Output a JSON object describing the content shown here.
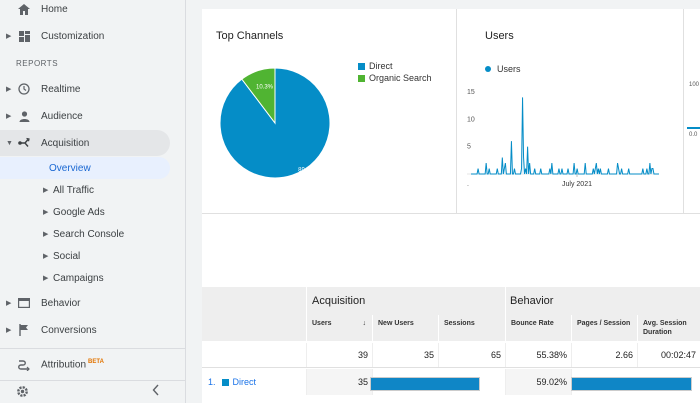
{
  "sidebar": {
    "home": "Home",
    "customization": "Customization",
    "reports_label": "REPORTS",
    "realtime": "Realtime",
    "audience": "Audience",
    "acquisition": "Acquisition",
    "overview": "Overview",
    "all_traffic": "All Traffic",
    "google_ads": "Google Ads",
    "search_console": "Search Console",
    "social": "Social",
    "campaigns": "Campaigns",
    "behavior": "Behavior",
    "conversions": "Conversions",
    "attribution": "Attribution",
    "beta": "BETA",
    "icons": [
      "home-icon",
      "grid-icon",
      "clock-icon",
      "person-icon",
      "acquisition-icon",
      "behavior-icon",
      "flag-icon",
      "attribution-icon",
      "gear-icon",
      "chevron-left-icon"
    ]
  },
  "top_channels": {
    "title": "Top Channels",
    "legend": [
      {
        "label": "Direct",
        "color": "#058dc7"
      },
      {
        "label": "Organic Search",
        "color": "#50b432"
      }
    ]
  },
  "users_panel": {
    "title": "Users",
    "legend_label": "Users",
    "series_color": "#058dc7",
    "y_ticks": [
      "15",
      "10",
      "5"
    ],
    "x_label": "July 2021",
    "x_left_dot": ".",
    "partial_tick_top": "100",
    "partial_tick_mid": "0.0"
  },
  "chart_data": [
    {
      "type": "pie",
      "labels": [
        "Direct",
        "Organic Search"
      ],
      "values": [
        89.7,
        10.3
      ],
      "data_labels": [
        "89.7%",
        "10.3%"
      ],
      "colors": [
        "#058dc7",
        "#50b432"
      ],
      "title": "Top Channels"
    },
    {
      "type": "line",
      "title": "Users",
      "series": [
        {
          "name": "Users",
          "values": [
            0,
            0,
            0,
            0,
            0,
            0,
            0,
            1,
            0,
            0,
            0,
            0,
            0,
            0,
            0,
            2,
            0,
            0,
            1,
            0,
            0,
            0,
            0,
            0,
            0,
            0,
            1,
            0,
            0,
            0,
            0,
            3,
            0,
            1,
            2,
            0,
            0,
            0,
            0,
            0,
            6,
            0,
            0,
            1,
            0,
            0,
            0,
            0,
            0,
            0,
            1,
            14,
            3,
            0,
            1,
            0,
            5,
            0,
            2,
            0,
            0,
            0,
            0,
            1,
            0,
            0,
            0,
            0,
            0,
            1,
            0,
            0,
            0,
            0,
            0,
            0,
            0,
            0,
            1,
            0,
            2,
            0,
            0,
            0,
            0,
            0,
            0,
            1,
            0,
            0,
            1,
            0,
            0,
            0,
            0,
            0,
            1,
            0,
            0,
            0,
            0,
            0,
            2,
            0,
            0,
            1,
            0,
            0,
            0,
            0,
            0,
            0,
            0,
            2,
            0,
            0,
            0,
            0,
            0,
            0,
            0,
            1,
            0,
            1,
            2,
            0,
            1,
            0,
            1,
            0,
            0,
            0,
            0,
            0,
            0,
            0,
            1,
            0,
            0,
            0,
            0,
            0,
            0,
            0,
            0,
            2,
            1,
            0,
            0,
            1,
            0,
            0,
            0,
            0,
            0,
            0,
            1,
            0,
            0,
            0,
            0,
            0,
            0,
            0,
            0,
            0,
            0,
            0,
            0,
            0,
            1,
            0,
            0,
            0,
            1,
            0,
            0,
            2,
            0,
            1,
            1,
            0,
            0,
            0,
            0,
            0,
            0
          ]
        }
      ],
      "yticks": [
        5,
        10,
        15
      ],
      "ylim": [
        0,
        17
      ],
      "xlabel_tick": "July 2021"
    }
  ],
  "table": {
    "group_acquisition": "Acquisition",
    "group_behavior": "Behavior",
    "headers": [
      {
        "label": "Users",
        "sort": "↓"
      },
      {
        "label": "New Users"
      },
      {
        "label": "Sessions"
      },
      {
        "label": "Bounce Rate"
      },
      {
        "label": "Pages / Session"
      },
      {
        "label": "Avg. Session Duration"
      }
    ],
    "totals": [
      "39",
      "35",
      "65",
      "55.38%",
      "2.66",
      "00:02:47"
    ],
    "row": {
      "index": "1.",
      "channel": "Direct",
      "channel_color": "#058dc7",
      "users": "35",
      "bounce_rate": "59.02%",
      "new_users_fraction": 0.95,
      "pages_fraction": 1.0
    }
  }
}
